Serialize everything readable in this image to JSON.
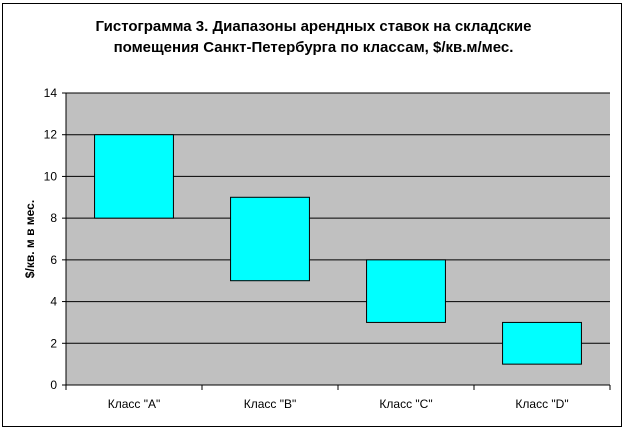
{
  "chart_data": {
    "type": "bar",
    "subtype": "floating-range",
    "title_lines": [
      "Гистограмма 3. Диапазоны арендных ставок на складские",
      "помещения Санкт-Петербурга по классам, $/кв.м/мес."
    ],
    "ylabel": "$/кв. м в мес.",
    "xlabel": "",
    "categories": [
      "Класс \"A\"",
      "Класс \"B\"",
      "Класс \"C\"",
      "Класс \"D\""
    ],
    "series": [
      {
        "low": [
          8,
          5,
          3,
          1
        ],
        "high": [
          12,
          9,
          6,
          3
        ]
      }
    ],
    "ylim": [
      0,
      14
    ],
    "yticks": [
      0,
      2,
      4,
      6,
      8,
      10,
      12,
      14
    ],
    "grid": true,
    "legend": "none",
    "colors": {
      "bar": "#00FFFF",
      "plot_bg": "#C0C0C0",
      "grid": "#000000"
    }
  }
}
